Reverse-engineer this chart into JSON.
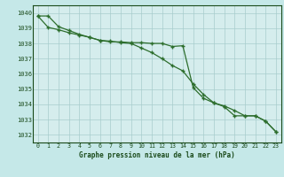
{
  "title": "Graphe pression niveau de la mer (hPa)",
  "background_color": "#c5e8e8",
  "plot_background": "#d5eded",
  "grid_color": "#a8cccc",
  "line_color": "#2d6e2d",
  "x_labels": [
    "0",
    "1",
    "2",
    "3",
    "4",
    "5",
    "6",
    "7",
    "8",
    "9",
    "10",
    "11",
    "12",
    "13",
    "14",
    "15",
    "16",
    "17",
    "18",
    "19",
    "20",
    "21",
    "22",
    "23"
  ],
  "ylim": [
    1031.5,
    1040.5
  ],
  "yticks": [
    1032,
    1033,
    1034,
    1035,
    1036,
    1037,
    1038,
    1039,
    1040
  ],
  "series1": [
    1039.8,
    1039.8,
    1039.1,
    1038.85,
    1038.6,
    1038.4,
    1038.2,
    1038.1,
    1038.1,
    1038.05,
    1038.05,
    1038.0,
    1038.0,
    1037.8,
    1037.85,
    1035.1,
    1034.4,
    1034.1,
    1033.85,
    1033.25,
    1033.25,
    1033.25,
    1032.9,
    1032.2
  ],
  "series2": [
    1039.8,
    1039.05,
    1038.9,
    1038.7,
    1038.55,
    1038.4,
    1038.2,
    1038.15,
    1038.05,
    1038.0,
    1037.7,
    1037.4,
    1037.0,
    1036.55,
    1036.2,
    1035.35,
    1034.65,
    1034.1,
    1033.9,
    1033.6,
    1033.25,
    1033.25,
    1032.9,
    1032.2
  ]
}
